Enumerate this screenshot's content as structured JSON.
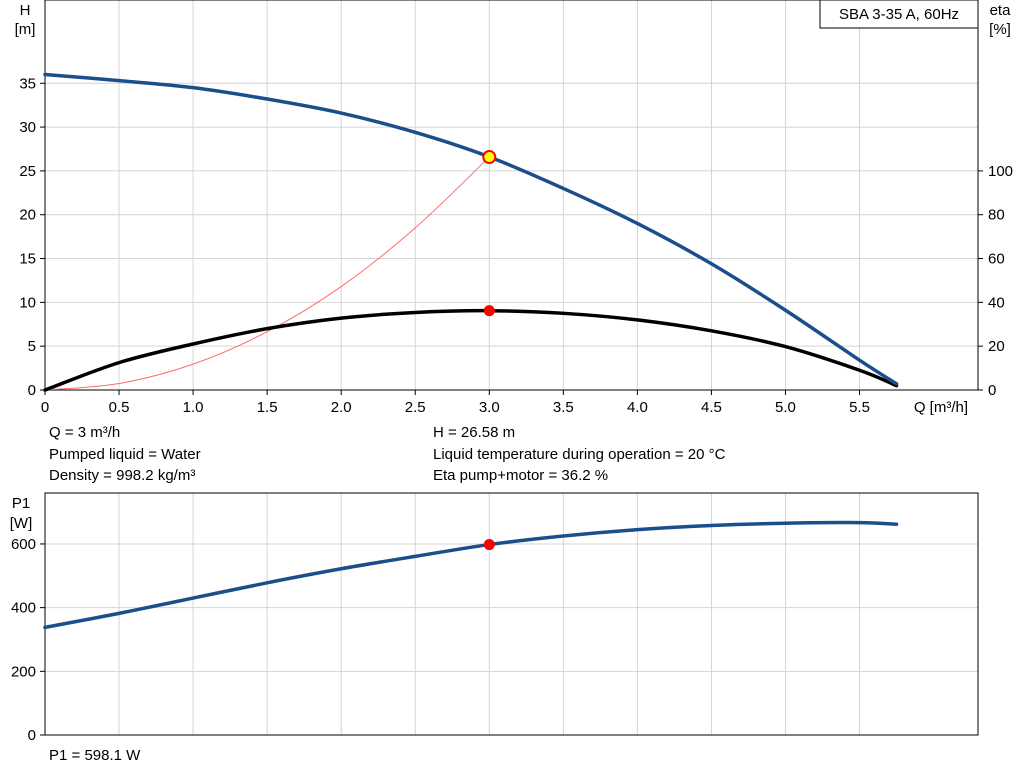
{
  "chart_data": [
    {
      "type": "line",
      "title": "SBA 3-35 A, 60Hz",
      "xlabel": "Q [m³/h]",
      "ylabel_left": {
        "symbol": "H",
        "unit": "[m]"
      },
      "ylabel_right": {
        "symbol": "eta",
        "unit": "[%]"
      },
      "xlim": [
        0,
        6.3
      ],
      "ylim": [
        0,
        44.5
      ],
      "ylim_right": [
        0,
        178
      ],
      "x_ticks": [
        0,
        0.5,
        1.0,
        1.5,
        2.0,
        2.5,
        3.0,
        3.5,
        4.0,
        4.5,
        5.0,
        5.5
      ],
      "x_tick_labels": [
        "0",
        "0.5",
        "1.0",
        "1.5",
        "2.0",
        "2.5",
        "3.0",
        "3.5",
        "4.0",
        "4.5",
        "5.0",
        "5.5"
      ],
      "y_ticks": [
        0,
        5,
        10,
        15,
        20,
        25,
        30,
        35
      ],
      "y_tick_labels": [
        "0",
        "5",
        "10",
        "15",
        "20",
        "25",
        "30",
        "35"
      ],
      "y_right_ticks": [
        0,
        20,
        40,
        60,
        80,
        100
      ],
      "y_right_tick_labels": [
        "0",
        "20",
        "40",
        "60",
        "80",
        "100"
      ],
      "grid": true,
      "series": [
        {
          "axis": "left",
          "color": "#1a4f8b",
          "x": [
            0,
            0.5,
            1.0,
            1.5,
            2.0,
            2.5,
            3.0,
            3.5,
            4.0,
            4.5,
            5.0,
            5.5,
            5.75
          ],
          "y": [
            36.0,
            35.3,
            34.5,
            33.2,
            31.6,
            29.4,
            26.6,
            23.0,
            19.0,
            14.4,
            9.1,
            3.4,
            0.7
          ]
        },
        {
          "axis": "right",
          "color": "#000000",
          "x": [
            0,
            0.5,
            1.0,
            1.5,
            2.0,
            2.5,
            3.0,
            3.5,
            4.0,
            4.5,
            5.0,
            5.5,
            5.75
          ],
          "y": [
            0,
            12.5,
            21.0,
            28.0,
            32.8,
            35.4,
            36.2,
            35.0,
            32.0,
            27.0,
            19.8,
            9.0,
            2.0
          ]
        },
        {
          "axis": "left",
          "color": "#ff6b6b",
          "x": [
            0,
            0.5,
            1.0,
            1.5,
            2.0,
            2.5,
            3.0
          ],
          "y": [
            0,
            0.74,
            2.95,
            6.65,
            11.8,
            18.5,
            26.58
          ]
        }
      ],
      "duty_point": {
        "x": 3.0,
        "H": 26.58,
        "eta": 36.2
      }
    },
    {
      "type": "line",
      "ylabel": {
        "symbol": "P1",
        "unit": "[W]"
      },
      "xlim": [
        0,
        6.3
      ],
      "ylim": [
        0,
        760
      ],
      "x_ticks": [
        0,
        0.5,
        1.0,
        1.5,
        2.0,
        2.5,
        3.0,
        3.5,
        4.0,
        4.5,
        5.0,
        5.5
      ],
      "y_ticks": [
        0,
        200,
        400,
        600
      ],
      "y_tick_labels": [
        "0",
        "200",
        "400",
        "600"
      ],
      "grid": true,
      "series": [
        {
          "color": "#1a4f8b",
          "x": [
            0,
            0.5,
            1.0,
            1.5,
            2.0,
            2.5,
            3.0,
            3.5,
            4.0,
            4.5,
            5.0,
            5.5,
            5.75
          ],
          "y": [
            338,
            382,
            430,
            478,
            522,
            561,
            598.1,
            625,
            645,
            658,
            665,
            667,
            662
          ]
        }
      ],
      "duty_point": {
        "x": 3.0,
        "P1": 598.1
      }
    }
  ],
  "info": {
    "q": "Q = 3 m³/h",
    "liquid": "Pumped liquid = Water",
    "density": "Density = 998.2 kg/m³",
    "h": "H = 26.58 m",
    "temperature": "Liquid temperature during operation = 20 °C",
    "eta": "Eta pump+motor = 36.2 %",
    "p1": "P1 = 598.1 W"
  },
  "colors": {
    "grid": "#d4d4d4",
    "duty_fill": "#ffff00",
    "duty_ring": "#ff0000",
    "dot": "#ff0000"
  }
}
